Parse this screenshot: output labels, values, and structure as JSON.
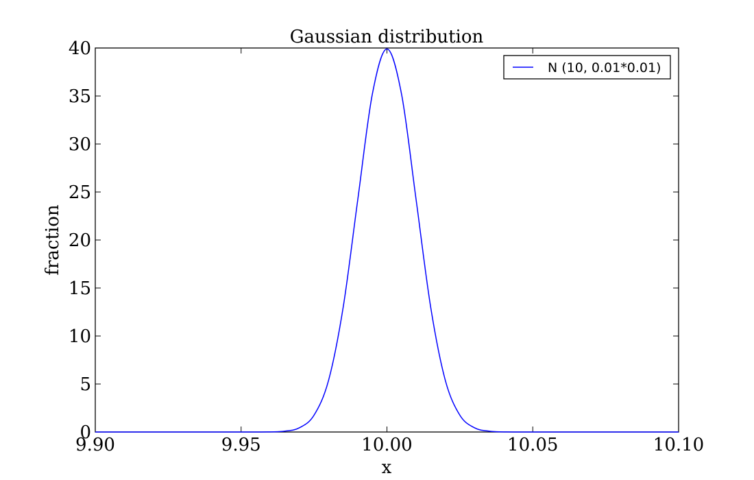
{
  "chart_data": {
    "type": "line",
    "title": "Gaussian distribution",
    "xlabel": "x",
    "ylabel": "fraction",
    "xlim": [
      9.9,
      10.1
    ],
    "ylim": [
      0,
      40
    ],
    "xticks": [
      9.9,
      9.95,
      10.0,
      10.05,
      10.1
    ],
    "xtick_labels": [
      "9.90",
      "9.95",
      "10.00",
      "10.05",
      "10.10"
    ],
    "yticks": [
      0,
      5,
      10,
      15,
      20,
      25,
      30,
      35,
      40
    ],
    "ytick_labels": [
      "0",
      "5",
      "10",
      "15",
      "20",
      "25",
      "30",
      "35",
      "40"
    ],
    "grid": false,
    "legend_position": "top-right",
    "series": [
      {
        "name": "N (10, 0.01*0.01)",
        "color": "#0000ff",
        "x": [
          9.9,
          9.95,
          9.96,
          9.965,
          9.97,
          9.975,
          9.98,
          9.985,
          9.99,
          9.995,
          10.0,
          10.005,
          10.01,
          10.015,
          10.02,
          10.025,
          10.03,
          10.035,
          10.04,
          10.05,
          10.1
        ],
        "y": [
          0,
          0.00015,
          0.013,
          0.087,
          0.44,
          1.75,
          5.4,
          13.0,
          24.2,
          35.2,
          39.9,
          35.2,
          24.2,
          13.0,
          5.4,
          1.75,
          0.44,
          0.087,
          0.013,
          0.00015,
          0
        ]
      }
    ]
  }
}
